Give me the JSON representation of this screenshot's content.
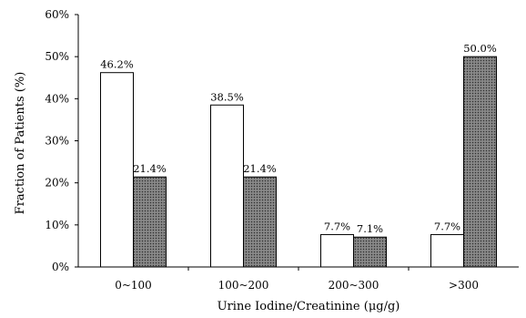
{
  "chart_data": {
    "type": "bar",
    "categories": [
      "0~100",
      "100~200",
      "200~300",
      ">300"
    ],
    "series": [
      {
        "values": [
          46.2,
          38.5,
          7.7,
          7.7
        ],
        "labels": [
          "46.2%",
          "38.5%",
          "7.7%",
          "7.7%"
        ],
        "fill": "#ffffff"
      },
      {
        "values": [
          21.4,
          21.4,
          7.1,
          50.0
        ],
        "labels": [
          "21.4%",
          "21.4%",
          "7.1%",
          "50.0%"
        ],
        "fill": "#6e6e6e"
      }
    ],
    "yticks": [
      "0%",
      "10%",
      "20%",
      "30%",
      "40%",
      "50%",
      "60%"
    ],
    "ylim": [
      0,
      60
    ],
    "ylabel": "Fraction of Patients (%)",
    "xlabel": "Urine Iodine/Creatinine (μg/g)",
    "grid": false,
    "legend": "none"
  }
}
